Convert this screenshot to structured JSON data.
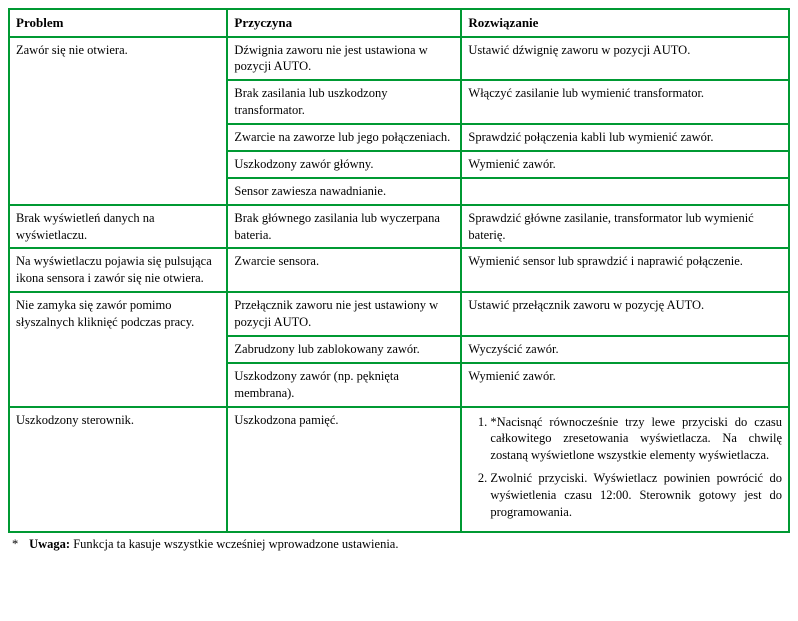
{
  "headers": {
    "problem": "Problem",
    "cause": "Przyczyna",
    "solution": "Rozwiązanie"
  },
  "rows": {
    "r1": {
      "problem": "Zawór się nie otwiera.",
      "cause": "Dźwignia zaworu nie jest ustawiona w pozycji AUTO.",
      "solution": "Ustawić dźwignię zaworu w pozycji AUTO."
    },
    "r2": {
      "cause": "Brak zasilania lub uszkodzony transformator.",
      "solution": "Włączyć zasilanie lub wymienić transformator."
    },
    "r3": {
      "cause": "Zwarcie na zaworze lub jego połączeniach.",
      "solution": "Sprawdzić połączenia kabli lub wymienić zawór."
    },
    "r4": {
      "cause": "Uszkodzony zawór główny.",
      "solution": "Wymienić zawór."
    },
    "r5": {
      "cause": "Sensor zawiesza nawadnianie.",
      "solution": ""
    },
    "r6": {
      "problem": "Brak wyświetleń danych na wyświetlaczu.",
      "cause": "Brak głównego zasilania lub wyczerpana bateria.",
      "solution": "Sprawdzić główne zasilanie, transformator lub wymienić baterię."
    },
    "r7": {
      "problem": "Na wyświetlaczu pojawia się pulsująca ikona sensora i zawór się nie otwiera.",
      "cause": "Zwarcie sensora.",
      "solution": "Wymienić sensor lub sprawdzić i naprawić połączenie."
    },
    "r8": {
      "problem": "Nie zamyka się zawór pomimo słyszalnych kliknięć podczas pracy.",
      "cause": "Przełącznik zaworu nie jest ustawiony w pozycji AUTO.",
      "solution": "Ustawić przełącznik zaworu w pozycję AUTO."
    },
    "r9": {
      "cause": "Zabrudzony lub zablokowany zawór.",
      "solution": "Wyczyścić zawór."
    },
    "r10": {
      "cause": "Uszkodzony zawór (np. pęknięta membrana).",
      "solution": "Wymienić zawór."
    },
    "r11": {
      "problem": "Uszkodzony sterownik.",
      "cause": "Uszkodzona pamięć.",
      "solution_item1": "*Nacisnąć równocześnie trzy lewe przyciski do czasu całkowitego zresetowania wyświetlacza. Na chwilę zostaną wyświetlone wszystkie elementy wyświetlacza.",
      "solution_item2": "Zwolnić przyciski. Wyświetlacz powinien powrócić do wyświetlenia czasu 12:00. Sterownik gotowy jest do programowania."
    }
  },
  "footnote": {
    "star": "*",
    "label": "Uwaga:",
    "text": " Funkcja ta kasuje wszystkie wcześniej wprowadzone ustawienia."
  }
}
